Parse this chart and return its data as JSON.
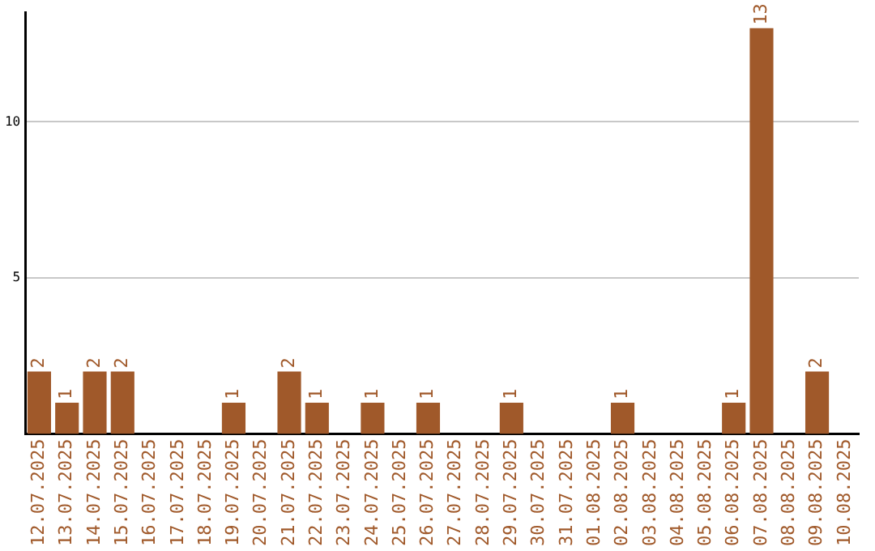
{
  "chart_data": {
    "type": "bar",
    "categories": [
      "12.07.2025",
      "13.07.2025",
      "14.07.2025",
      "15.07.2025",
      "16.07.2025",
      "17.07.2025",
      "18.07.2025",
      "19.07.2025",
      "20.07.2025",
      "21.07.2025",
      "22.07.2025",
      "23.07.2025",
      "24.07.2025",
      "25.07.2025",
      "26.07.2025",
      "27.07.2025",
      "28.07.2025",
      "29.07.2025",
      "30.07.2025",
      "31.07.2025",
      "01.08.2025",
      "02.08.2025",
      "03.08.2025",
      "04.08.2025",
      "05.08.2025",
      "06.08.2025",
      "07.08.2025",
      "08.08.2025",
      "09.08.2025",
      "10.08.2025"
    ],
    "values": [
      2,
      1,
      2,
      2,
      0,
      0,
      0,
      1,
      0,
      2,
      1,
      0,
      1,
      0,
      1,
      0,
      0,
      1,
      0,
      0,
      0,
      1,
      0,
      0,
      0,
      1,
      13,
      0,
      2,
      0
    ],
    "value_labels": [
      "2",
      "1",
      "2",
      "2",
      null,
      null,
      null,
      "1",
      null,
      "2",
      "1",
      null,
      "1",
      null,
      "1",
      null,
      null,
      "1",
      null,
      null,
      null,
      "1",
      null,
      null,
      null,
      "1",
      "13",
      null,
      "2",
      null
    ],
    "color": "#a0592a",
    "ylim": [
      0,
      13.5
    ],
    "yticks": [
      5,
      10
    ],
    "grid": "y",
    "legend": false
  }
}
